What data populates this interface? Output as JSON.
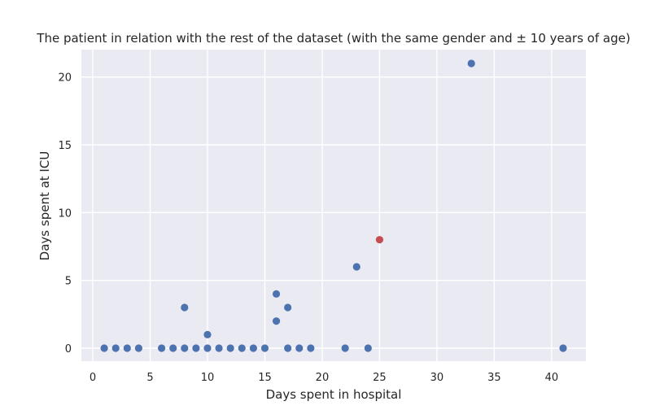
{
  "chart_data": {
    "type": "scatter",
    "title": "The patient in relation with the rest of the dataset (with the same gender and ± 10 years of age)",
    "xlabel": "Days spent in hospital",
    "ylabel": "Days spent at ICU",
    "xlim": [
      -0.0,
      43.0
    ],
    "ylim": [
      -1.0,
      22.0
    ],
    "xticks": [
      0,
      5,
      10,
      15,
      20,
      25,
      30,
      35,
      40
    ],
    "yticks": [
      0,
      5,
      10,
      15,
      20
    ],
    "grid": true,
    "series": [
      {
        "color": "#4c72b0",
        "points": [
          [
            1,
            0
          ],
          [
            2,
            0
          ],
          [
            3,
            0
          ],
          [
            4,
            0
          ],
          [
            6,
            0
          ],
          [
            7,
            0
          ],
          [
            8,
            0
          ],
          [
            9,
            0
          ],
          [
            10,
            0
          ],
          [
            11,
            0
          ],
          [
            12,
            0
          ],
          [
            13,
            0
          ],
          [
            14,
            0
          ],
          [
            15,
            0
          ],
          [
            17,
            0
          ],
          [
            18,
            0
          ],
          [
            19,
            0
          ],
          [
            22,
            0
          ],
          [
            24,
            0
          ],
          [
            41,
            0
          ],
          [
            10,
            1
          ],
          [
            16,
            2
          ],
          [
            8,
            3
          ],
          [
            17,
            3
          ],
          [
            16,
            4
          ],
          [
            23,
            6
          ],
          [
            33,
            21
          ]
        ]
      },
      {
        "color": "#c44e52",
        "points": [
          [
            25,
            8
          ]
        ]
      }
    ]
  }
}
